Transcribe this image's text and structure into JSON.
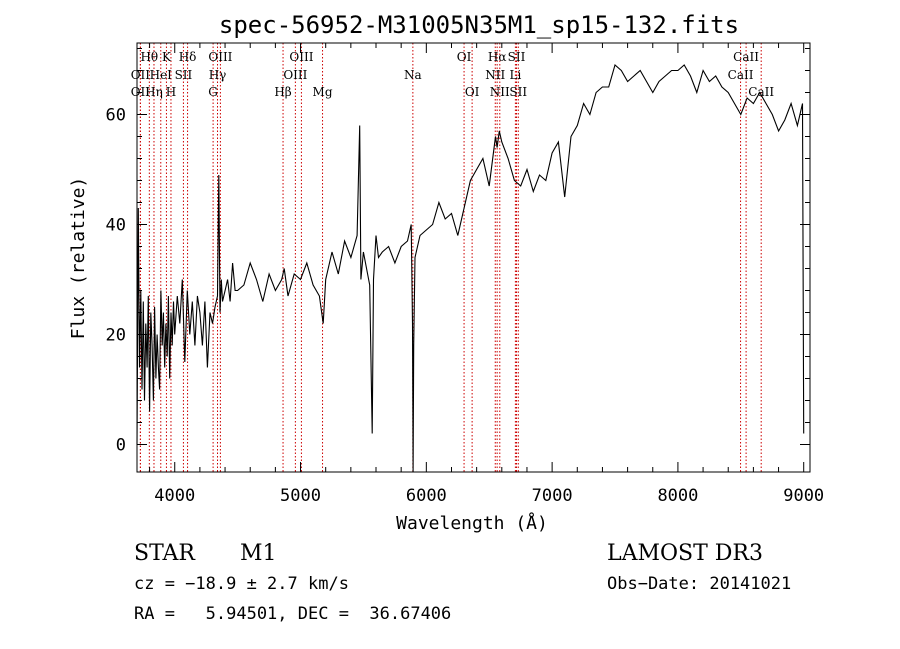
{
  "chart_data": {
    "type": "line",
    "title": "spec-56952-M31005N35M1_sp15-132.fits",
    "xlabel": "Wavelength (Å)",
    "ylabel": "Flux (relative)",
    "xlim": [
      3700,
      9050
    ],
    "ylim": [
      -5,
      73
    ],
    "xticks": [
      4000,
      5000,
      6000,
      7000,
      8000,
      9000
    ],
    "yticks": [
      0,
      20,
      40,
      60
    ],
    "grid": false,
    "series": [
      {
        "name": "flux",
        "x": [
          3700,
          3710,
          3720,
          3730,
          3740,
          3750,
          3760,
          3770,
          3780,
          3790,
          3800,
          3810,
          3820,
          3830,
          3840,
          3850,
          3860,
          3870,
          3880,
          3890,
          3900,
          3910,
          3920,
          3930,
          3940,
          3950,
          3960,
          3970,
          3980,
          3990,
          4000,
          4020,
          4040,
          4060,
          4080,
          4100,
          4120,
          4140,
          4160,
          4180,
          4200,
          4220,
          4240,
          4260,
          4280,
          4300,
          4320,
          4340,
          4350,
          4360,
          4370,
          4380,
          4400,
          4420,
          4440,
          4460,
          4480,
          4500,
          4550,
          4600,
          4650,
          4700,
          4750,
          4800,
          4850,
          4870,
          4900,
          4950,
          5000,
          5050,
          5100,
          5150,
          5180,
          5200,
          5250,
          5300,
          5350,
          5400,
          5450,
          5470,
          5480,
          5500,
          5550,
          5570,
          5580,
          5600,
          5620,
          5650,
          5700,
          5750,
          5800,
          5850,
          5880,
          5890,
          5895,
          5900,
          5910,
          5950,
          6000,
          6050,
          6100,
          6150,
          6200,
          6250,
          6300,
          6350,
          6400,
          6450,
          6500,
          6550,
          6563,
          6580,
          6600,
          6650,
          6700,
          6750,
          6800,
          6850,
          6900,
          6950,
          7000,
          7050,
          7100,
          7150,
          7200,
          7250,
          7300,
          7350,
          7400,
          7450,
          7500,
          7550,
          7600,
          7650,
          7700,
          7750,
          7800,
          7850,
          7900,
          7950,
          8000,
          8050,
          8100,
          8150,
          8200,
          8250,
          8300,
          8350,
          8400,
          8450,
          8500,
          8550,
          8600,
          8650,
          8700,
          8750,
          8800,
          8850,
          8900,
          8950,
          8990,
          9000
        ],
        "y": [
          0,
          43,
          14,
          28,
          10,
          26,
          8,
          22,
          14,
          27,
          6,
          24,
          18,
          8,
          25,
          12,
          20,
          14,
          10,
          28,
          18,
          24,
          14,
          22,
          16,
          27,
          12,
          24,
          18,
          26,
          20,
          27,
          22,
          30,
          15,
          28,
          20,
          26,
          18,
          27,
          24,
          18,
          26,
          14,
          24,
          22,
          25,
          27,
          49,
          24,
          30,
          26,
          28,
          30,
          26,
          33,
          28,
          28,
          29,
          33,
          30,
          26,
          31,
          28,
          30,
          32,
          27,
          31,
          30,
          33,
          29,
          27,
          22,
          30,
          35,
          31,
          37,
          34,
          38,
          58,
          30,
          35,
          29,
          2,
          30,
          38,
          34,
          35,
          36,
          33,
          36,
          37,
          40,
          22,
          -5,
          18,
          34,
          38,
          39,
          40,
          44,
          41,
          42,
          38,
          43,
          48,
          50,
          52,
          47,
          56,
          54,
          57,
          55,
          52,
          48,
          47,
          50,
          46,
          49,
          48,
          53,
          55,
          45,
          56,
          58,
          62,
          60,
          64,
          65,
          65,
          69,
          68,
          66,
          67,
          68,
          66,
          64,
          66,
          67,
          68,
          68,
          69,
          67,
          64,
          68,
          66,
          67,
          65,
          64,
          62,
          60,
          63,
          62,
          64,
          62,
          60,
          57,
          59,
          62,
          58,
          62,
          2
        ]
      }
    ],
    "line_markers": [
      {
        "label": "Hθ",
        "wavelength": 3798,
        "row": 0
      },
      {
        "label": "OII",
        "wavelength": 3727,
        "row": 1
      },
      {
        "label": "OII",
        "wavelength": 3727,
        "row": 2
      },
      {
        "label": "Hη",
        "wavelength": 3835,
        "row": 2
      },
      {
        "label": "K",
        "wavelength": 3934,
        "row": 0
      },
      {
        "label": "HeI",
        "wavelength": 3889,
        "row": 1
      },
      {
        "label": "H",
        "wavelength": 3970,
        "row": 2
      },
      {
        "label": "SII",
        "wavelength": 4069,
        "row": 1
      },
      {
        "label": "Hδ",
        "wavelength": 4102,
        "row": 0
      },
      {
        "label": "OIII",
        "wavelength": 4363,
        "row": 0
      },
      {
        "label": "Hγ",
        "wavelength": 4340,
        "row": 1
      },
      {
        "label": "G",
        "wavelength": 4305,
        "row": 2
      },
      {
        "label": "Hβ",
        "wavelength": 4861,
        "row": 2
      },
      {
        "label": "OIII",
        "wavelength": 5007,
        "row": 0
      },
      {
        "label": "OIII",
        "wavelength": 4959,
        "row": 1
      },
      {
        "label": "Mg",
        "wavelength": 5175,
        "row": 2
      },
      {
        "label": "Na",
        "wavelength": 5893,
        "row": 1
      },
      {
        "label": "OI",
        "wavelength": 6300,
        "row": 0
      },
      {
        "label": "OI",
        "wavelength": 6364,
        "row": 2
      },
      {
        "label": "Hα",
        "wavelength": 6563,
        "row": 0
      },
      {
        "label": "SII",
        "wavelength": 6717,
        "row": 0
      },
      {
        "label": "NII",
        "wavelength": 6548,
        "row": 1
      },
      {
        "label": "Li",
        "wavelength": 6708,
        "row": 1
      },
      {
        "label": "NII",
        "wavelength": 6584,
        "row": 2
      },
      {
        "label": "SII",
        "wavelength": 6731,
        "row": 2
      },
      {
        "label": "CaII",
        "wavelength": 8542,
        "row": 0
      },
      {
        "label": "CaII",
        "wavelength": 8498,
        "row": 1
      },
      {
        "label": "CaII",
        "wavelength": 8662,
        "row": 2
      }
    ],
    "marker_color": "#cc0000"
  },
  "info": {
    "object_class": "STAR",
    "subclass": "M1",
    "survey": "LAMOST DR3",
    "cz": "cz = −18.9 ± 2.7 km/s",
    "obs_date": "Obs−Date: 20141021",
    "coords": "RA =   5.94501, DEC =  36.67406"
  }
}
